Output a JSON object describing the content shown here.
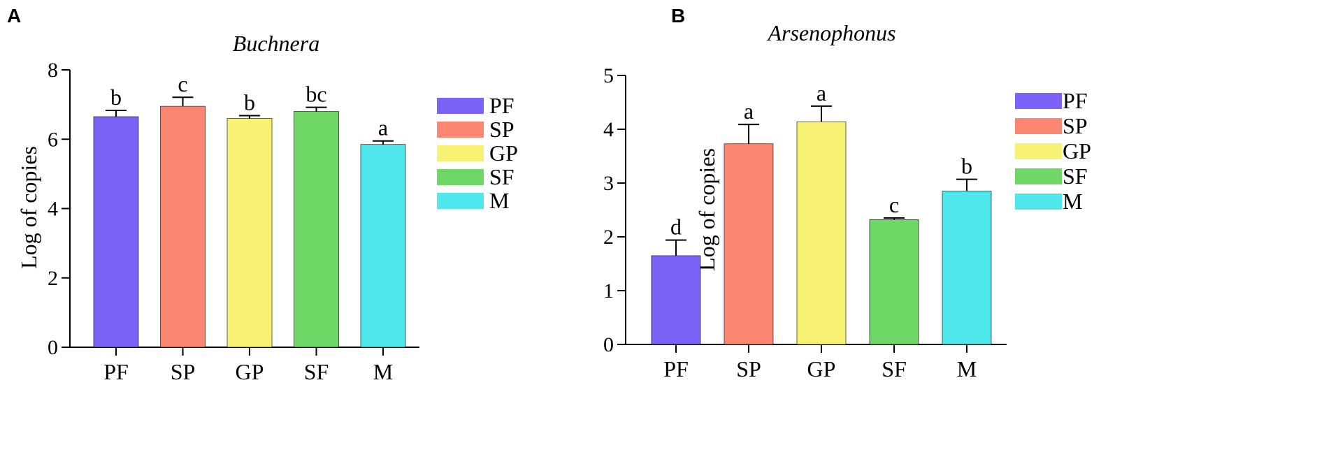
{
  "chart_data": [
    {
      "panel": "A",
      "type": "bar",
      "title": "Buchnera",
      "xlabel": "",
      "ylabel": "Log of  copies",
      "ylim": [
        0,
        8
      ],
      "yticks": [
        0,
        2,
        4,
        6,
        8
      ],
      "categories": [
        "PF",
        "SP",
        "GP",
        "SF",
        "M"
      ],
      "values": [
        6.65,
        6.95,
        6.6,
        6.8,
        5.85
      ],
      "errors": [
        0.18,
        0.26,
        0.08,
        0.12,
        0.1
      ],
      "significance": [
        "b",
        "c",
        "b",
        "bc",
        "a"
      ],
      "colors": [
        "#7b62f7",
        "#fb8672",
        "#f8f274",
        "#6ed765",
        "#4ee8ec"
      ],
      "legend": [
        "PF",
        "SP",
        "GP",
        "SF",
        "M"
      ]
    },
    {
      "panel": "B",
      "type": "bar",
      "title": "Arsenophonus",
      "xlabel": "",
      "ylabel": "Log of  copies",
      "ylim": [
        0,
        5
      ],
      "yticks": [
        0,
        1,
        2,
        3,
        4,
        5
      ],
      "categories": [
        "PF",
        "SP",
        "GP",
        "SF",
        "M"
      ],
      "values": [
        1.65,
        3.73,
        4.14,
        2.32,
        2.85
      ],
      "errors": [
        0.29,
        0.36,
        0.29,
        0.03,
        0.22
      ],
      "significance": [
        "d",
        "a",
        "a",
        "c",
        "b"
      ],
      "colors": [
        "#7b62f7",
        "#fb8672",
        "#f8f274",
        "#6ed765",
        "#4ee8ec"
      ],
      "legend": [
        "PF",
        "SP",
        "GP",
        "SF",
        "M"
      ]
    }
  ]
}
